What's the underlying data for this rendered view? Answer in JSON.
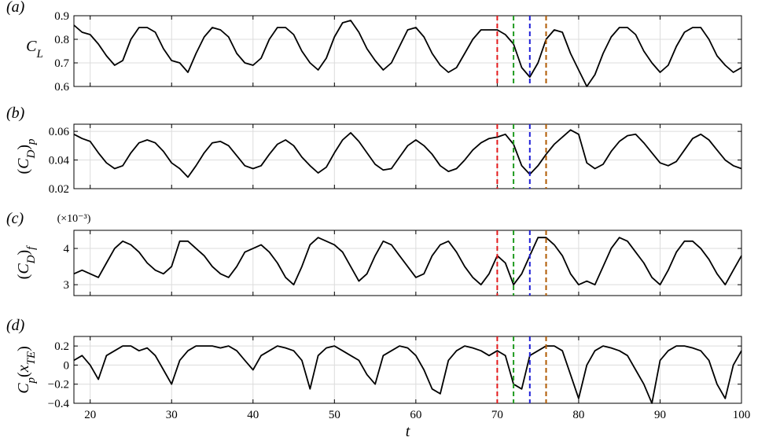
{
  "chart_data": [
    {
      "type": "line",
      "panel_label": "(a)",
      "ylabel": "C_L",
      "xlim": [
        18,
        100
      ],
      "ylim": [
        0.6,
        0.9
      ],
      "yticks": [
        "0.6",
        "0.7",
        "0.8",
        "0.9"
      ],
      "grid": true,
      "series": [
        {
          "x": [
            18,
            19,
            20,
            21,
            22,
            23,
            24,
            25,
            26,
            27,
            28,
            29,
            30,
            31,
            32,
            33,
            34,
            35,
            36,
            37,
            38,
            39,
            40,
            41,
            42,
            43,
            44,
            45,
            46,
            47,
            48,
            49,
            50,
            51,
            52,
            53,
            54,
            55,
            56,
            57,
            58,
            59,
            60,
            61,
            62,
            63,
            64,
            65,
            66,
            67,
            68,
            69,
            70,
            71,
            72,
            73,
            74,
            75,
            76,
            77,
            78,
            79,
            80,
            81,
            82,
            83,
            84,
            85,
            86,
            87,
            88,
            89,
            90,
            91,
            92,
            93,
            94,
            95,
            96,
            97,
            98,
            99,
            100
          ],
          "y": [
            0.86,
            0.83,
            0.82,
            0.78,
            0.73,
            0.69,
            0.71,
            0.8,
            0.85,
            0.85,
            0.83,
            0.76,
            0.71,
            0.7,
            0.66,
            0.74,
            0.81,
            0.85,
            0.84,
            0.81,
            0.74,
            0.7,
            0.69,
            0.72,
            0.8,
            0.85,
            0.85,
            0.82,
            0.75,
            0.7,
            0.67,
            0.72,
            0.81,
            0.87,
            0.88,
            0.83,
            0.76,
            0.71,
            0.67,
            0.7,
            0.77,
            0.84,
            0.85,
            0.81,
            0.74,
            0.69,
            0.66,
            0.68,
            0.74,
            0.8,
            0.84,
            0.84,
            0.84,
            0.82,
            0.78,
            0.68,
            0.64,
            0.7,
            0.8,
            0.84,
            0.83,
            0.74,
            0.67,
            0.6,
            0.65,
            0.74,
            0.81,
            0.85,
            0.85,
            0.82,
            0.75,
            0.7,
            0.66,
            0.69,
            0.77,
            0.83,
            0.85,
            0.85,
            0.8,
            0.73,
            0.69,
            0.66,
            0.68
          ]
        }
      ],
      "vlines": [
        {
          "x": 70,
          "color": "#e41a1c"
        },
        {
          "x": 72,
          "color": "#1f9a1f"
        },
        {
          "x": 74,
          "color": "#1f1fd6"
        },
        {
          "x": 76,
          "color": "#b05a00"
        }
      ]
    },
    {
      "type": "line",
      "panel_label": "(b)",
      "ylabel": "(C_D)_p",
      "xlim": [
        18,
        100
      ],
      "ylim": [
        0.02,
        0.065
      ],
      "yticks": [
        "0.02",
        "0.04",
        "0.06"
      ],
      "grid": true,
      "series": [
        {
          "x": [
            18,
            19,
            20,
            21,
            22,
            23,
            24,
            25,
            26,
            27,
            28,
            29,
            30,
            31,
            32,
            33,
            34,
            35,
            36,
            37,
            38,
            39,
            40,
            41,
            42,
            43,
            44,
            45,
            46,
            47,
            48,
            49,
            50,
            51,
            52,
            53,
            54,
            55,
            56,
            57,
            58,
            59,
            60,
            61,
            62,
            63,
            64,
            65,
            66,
            67,
            68,
            69,
            70,
            71,
            72,
            73,
            74,
            75,
            76,
            77,
            78,
            79,
            80,
            81,
            82,
            83,
            84,
            85,
            86,
            87,
            88,
            89,
            90,
            91,
            92,
            93,
            94,
            95,
            96,
            97,
            98,
            99,
            100
          ],
          "y": [
            0.058,
            0.055,
            0.053,
            0.045,
            0.038,
            0.034,
            0.036,
            0.045,
            0.052,
            0.054,
            0.052,
            0.046,
            0.038,
            0.034,
            0.028,
            0.036,
            0.045,
            0.052,
            0.053,
            0.05,
            0.043,
            0.036,
            0.034,
            0.036,
            0.044,
            0.051,
            0.054,
            0.05,
            0.042,
            0.036,
            0.031,
            0.035,
            0.045,
            0.054,
            0.059,
            0.053,
            0.045,
            0.037,
            0.033,
            0.034,
            0.042,
            0.05,
            0.054,
            0.05,
            0.044,
            0.036,
            0.032,
            0.034,
            0.04,
            0.047,
            0.052,
            0.055,
            0.056,
            0.058,
            0.051,
            0.036,
            0.03,
            0.036,
            0.044,
            0.051,
            0.056,
            0.061,
            0.058,
            0.038,
            0.034,
            0.037,
            0.046,
            0.053,
            0.057,
            0.058,
            0.052,
            0.045,
            0.038,
            0.036,
            0.039,
            0.047,
            0.055,
            0.058,
            0.054,
            0.047,
            0.04,
            0.036,
            0.034
          ]
        }
      ],
      "vlines": [
        {
          "x": 70,
          "color": "#e41a1c"
        },
        {
          "x": 72,
          "color": "#1f9a1f"
        },
        {
          "x": 74,
          "color": "#1f1fd6"
        },
        {
          "x": 76,
          "color": "#b05a00"
        }
      ]
    },
    {
      "type": "line",
      "panel_label": "(c)",
      "multiplier": "(×10⁻³)",
      "ylabel": "(C_D)_f",
      "xlim": [
        18,
        100
      ],
      "ylim": [
        2.7,
        4.5
      ],
      "yticks": [
        "3",
        "4"
      ],
      "grid": true,
      "series": [
        {
          "x": [
            18,
            19,
            20,
            21,
            22,
            23,
            24,
            25,
            26,
            27,
            28,
            29,
            30,
            31,
            32,
            33,
            34,
            35,
            36,
            37,
            38,
            39,
            40,
            41,
            42,
            43,
            44,
            45,
            46,
            47,
            48,
            49,
            50,
            51,
            52,
            53,
            54,
            55,
            56,
            57,
            58,
            59,
            60,
            61,
            62,
            63,
            64,
            65,
            66,
            67,
            68,
            69,
            70,
            71,
            72,
            73,
            74,
            75,
            76,
            77,
            78,
            79,
            80,
            81,
            82,
            83,
            84,
            85,
            86,
            87,
            88,
            89,
            90,
            91,
            92,
            93,
            94,
            95,
            96,
            97,
            98,
            99,
            100
          ],
          "y": [
            3.3,
            3.4,
            3.3,
            3.2,
            3.6,
            4.0,
            4.2,
            4.1,
            3.9,
            3.6,
            3.4,
            3.3,
            3.5,
            4.2,
            4.2,
            4.0,
            3.8,
            3.5,
            3.3,
            3.2,
            3.5,
            3.9,
            4.0,
            4.1,
            3.9,
            3.6,
            3.2,
            3.0,
            3.5,
            4.1,
            4.3,
            4.2,
            4.1,
            3.9,
            3.5,
            3.1,
            3.3,
            3.8,
            4.2,
            4.1,
            3.8,
            3.5,
            3.2,
            3.3,
            3.8,
            4.1,
            4.2,
            3.9,
            3.5,
            3.2,
            3.0,
            3.3,
            3.8,
            3.6,
            3.0,
            3.3,
            3.8,
            4.3,
            4.3,
            4.1,
            3.8,
            3.3,
            3.0,
            3.1,
            3.0,
            3.5,
            4.0,
            4.3,
            4.2,
            3.9,
            3.6,
            3.2,
            3.0,
            3.4,
            3.9,
            4.2,
            4.2,
            4.0,
            3.7,
            3.3,
            3.0,
            3.4,
            3.8
          ]
        }
      ],
      "vlines": [
        {
          "x": 70,
          "color": "#e41a1c"
        },
        {
          "x": 72,
          "color": "#1f9a1f"
        },
        {
          "x": 74,
          "color": "#1f1fd6"
        },
        {
          "x": 76,
          "color": "#b05a00"
        }
      ]
    },
    {
      "type": "line",
      "panel_label": "(d)",
      "ylabel": "C_p(x_TE)",
      "xlabel": "t",
      "xlim": [
        18,
        100
      ],
      "ylim": [
        -0.4,
        0.3
      ],
      "yticks": [
        "-0.4",
        "-0.2",
        "0",
        "0.2"
      ],
      "xticks": [
        "20",
        "30",
        "40",
        "50",
        "60",
        "70",
        "80",
        "90",
        "100"
      ],
      "grid": true,
      "series": [
        {
          "x": [
            18,
            19,
            20,
            21,
            22,
            23,
            24,
            25,
            26,
            27,
            28,
            29,
            30,
            31,
            32,
            33,
            34,
            35,
            36,
            37,
            38,
            39,
            40,
            41,
            42,
            43,
            44,
            45,
            46,
            47,
            48,
            49,
            50,
            51,
            52,
            53,
            54,
            55,
            56,
            57,
            58,
            59,
            60,
            61,
            62,
            63,
            64,
            65,
            66,
            67,
            68,
            69,
            70,
            71,
            72,
            73,
            74,
            75,
            76,
            77,
            78,
            79,
            80,
            81,
            82,
            83,
            84,
            85,
            86,
            87,
            88,
            89,
            90,
            91,
            92,
            93,
            94,
            95,
            96,
            97,
            98,
            99,
            100
          ],
          "y": [
            0.05,
            0.1,
            0.0,
            -0.15,
            0.1,
            0.15,
            0.2,
            0.2,
            0.15,
            0.18,
            0.1,
            -0.05,
            -0.2,
            0.05,
            0.15,
            0.2,
            0.2,
            0.2,
            0.18,
            0.2,
            0.15,
            0.05,
            -0.05,
            0.1,
            0.15,
            0.2,
            0.18,
            0.15,
            0.05,
            -0.25,
            0.1,
            0.18,
            0.2,
            0.15,
            0.1,
            0.05,
            -0.1,
            -0.2,
            0.1,
            0.15,
            0.2,
            0.18,
            0.1,
            -0.05,
            -0.25,
            -0.3,
            0.05,
            0.15,
            0.2,
            0.18,
            0.15,
            0.1,
            0.15,
            0.1,
            -0.2,
            -0.25,
            0.1,
            0.15,
            0.2,
            0.2,
            0.15,
            -0.1,
            -0.35,
            0.0,
            0.15,
            0.2,
            0.18,
            0.15,
            0.1,
            -0.05,
            -0.2,
            -0.4,
            0.05,
            0.15,
            0.2,
            0.2,
            0.18,
            0.15,
            0.05,
            -0.2,
            -0.35,
            0.0,
            0.15
          ]
        }
      ],
      "vlines": [
        {
          "x": 70,
          "color": "#e41a1c"
        },
        {
          "x": 72,
          "color": "#1f9a1f"
        },
        {
          "x": 74,
          "color": "#1f1fd6"
        },
        {
          "x": 76,
          "color": "#b05a00"
        }
      ]
    }
  ]
}
